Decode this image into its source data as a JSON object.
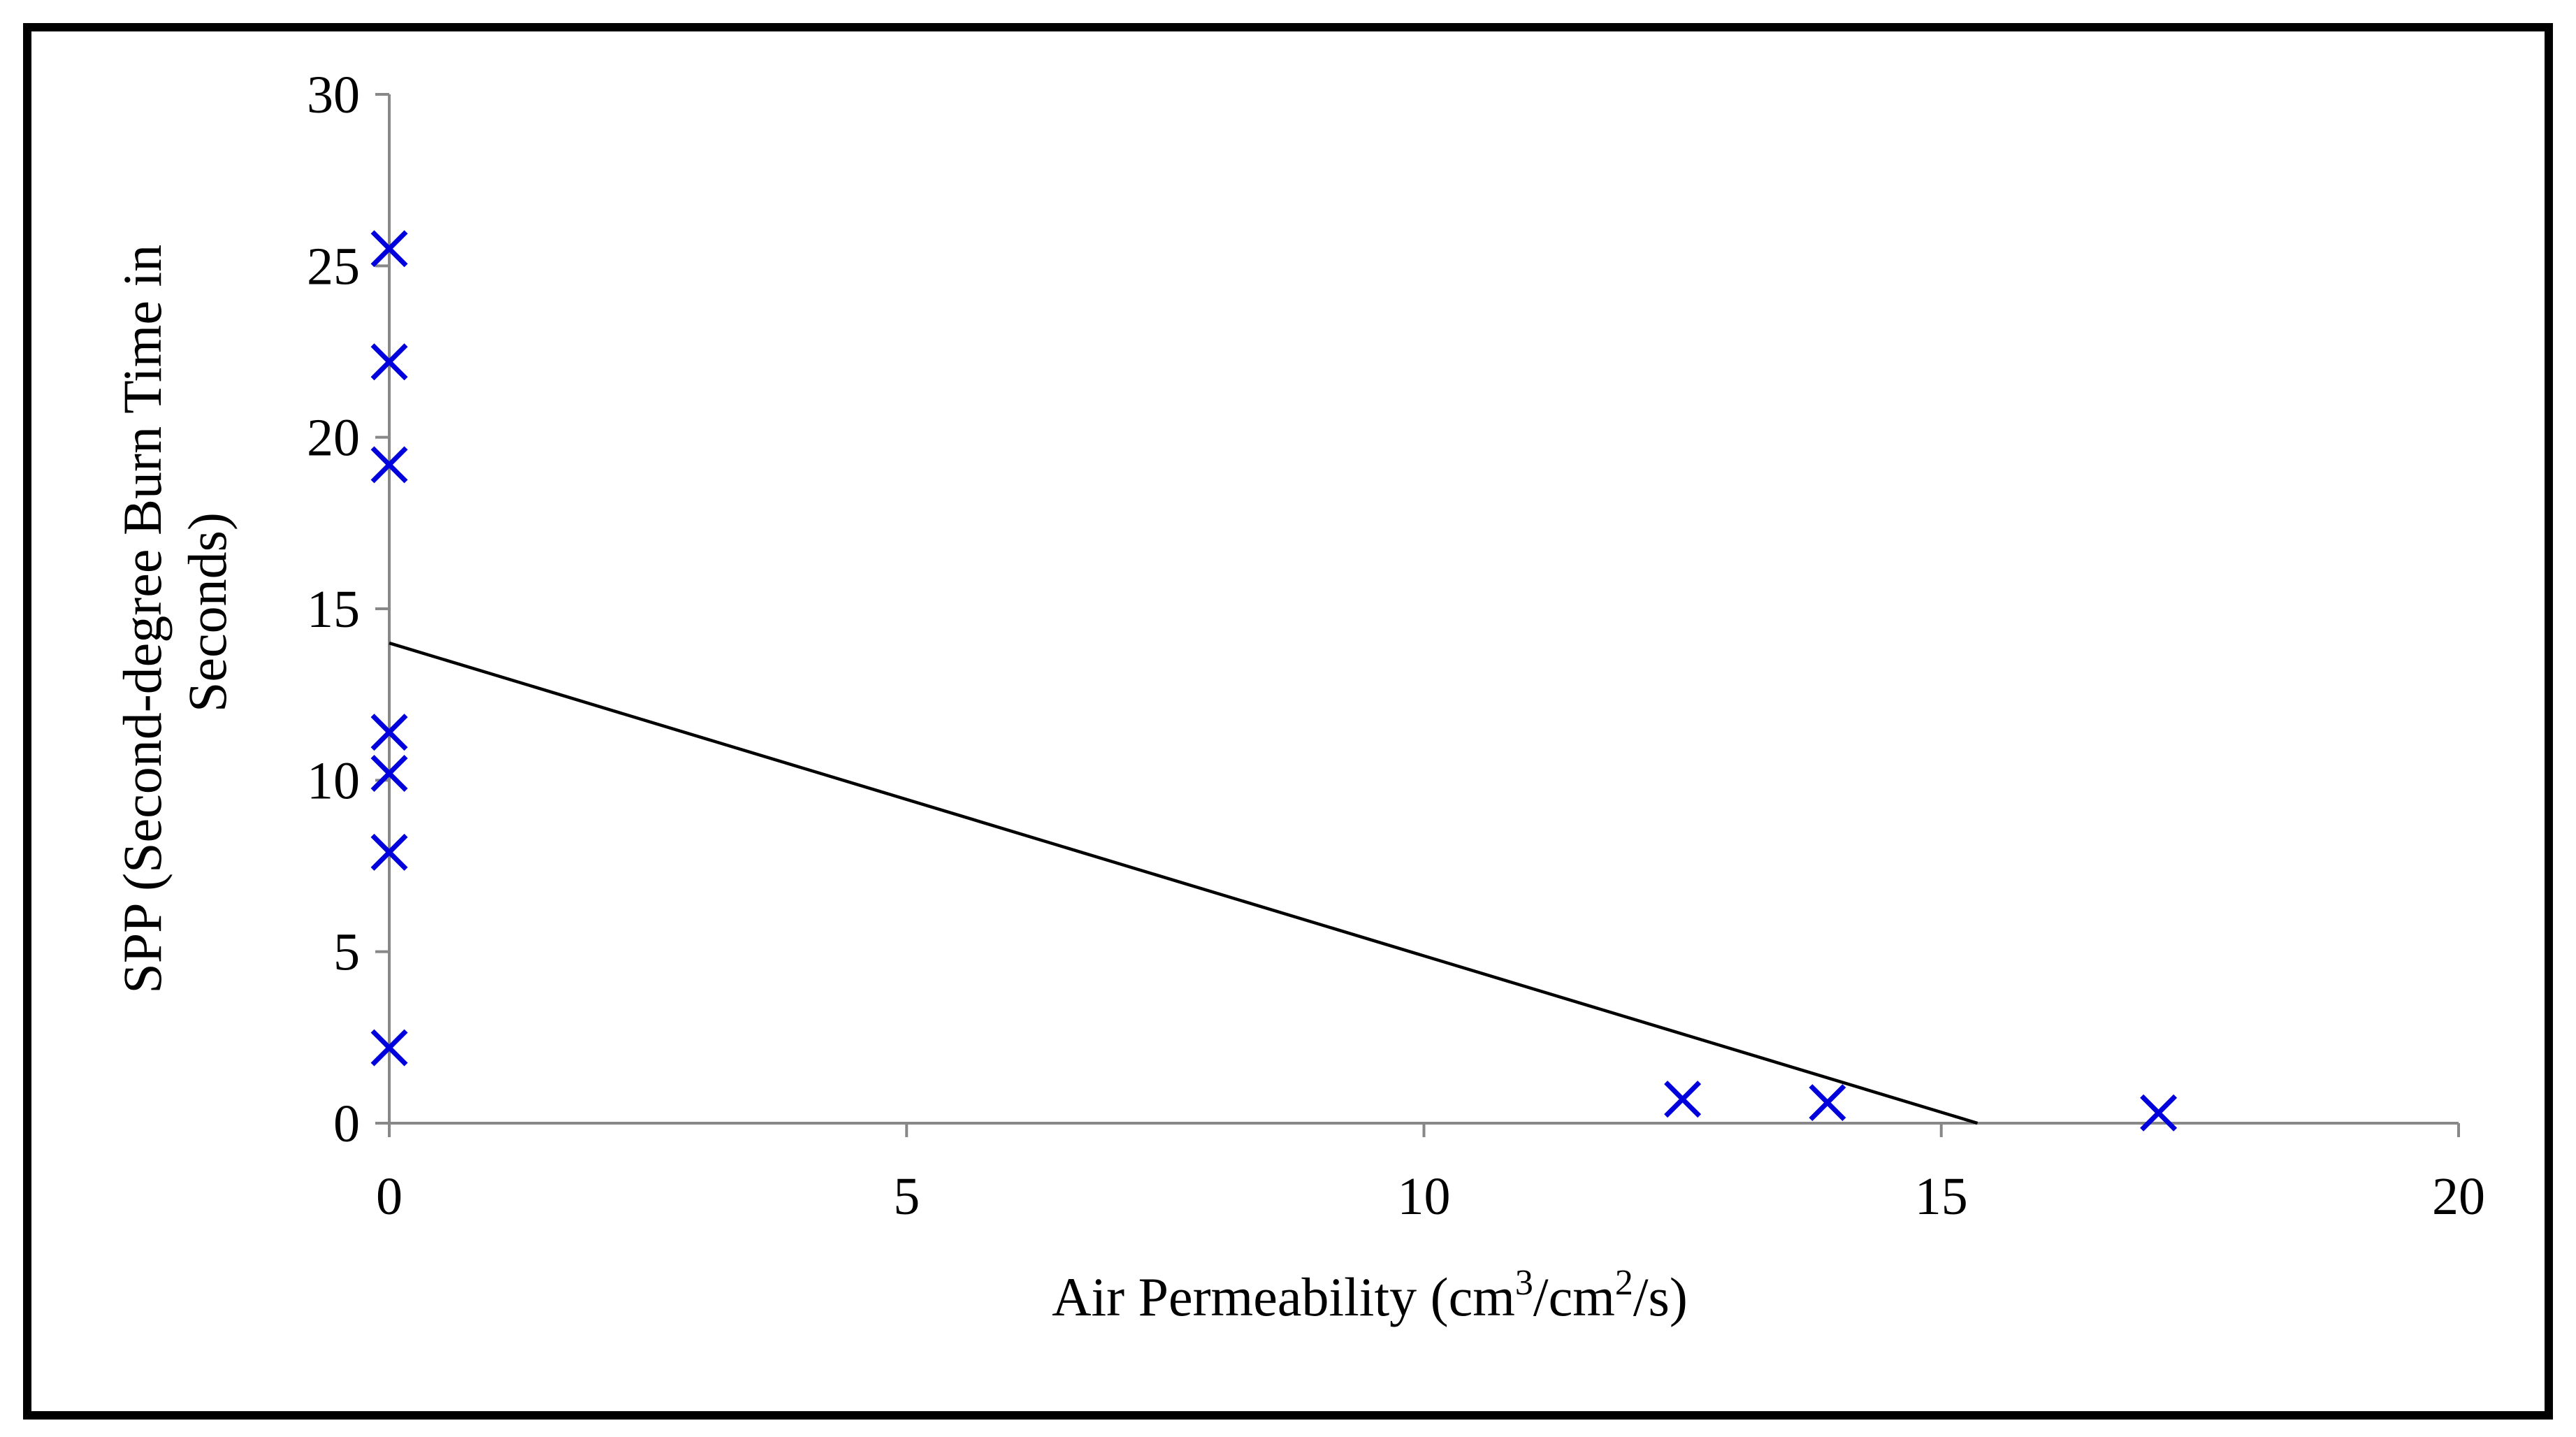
{
  "chart_data": {
    "type": "scatter",
    "title": "",
    "xlabel": {
      "prefix": "Air Permeability (cm",
      "sup1": "3",
      "mid": "/cm",
      "sup2": "2",
      "suffix": "/s)"
    },
    "ylabel": {
      "line1": "SPP (Second-degree Burn Time in",
      "line2": "Seconds)"
    },
    "xlim": [
      0,
      20
    ],
    "ylim": [
      0,
      30
    ],
    "x_ticks": [
      0,
      5,
      10,
      15,
      20
    ],
    "y_ticks": [
      0,
      5,
      10,
      15,
      20,
      25,
      30
    ],
    "grid": false,
    "legend": "none",
    "series": [
      {
        "marker": "x",
        "color": "#0000dd",
        "points": [
          {
            "x": 0,
            "y": 25.5
          },
          {
            "x": 0,
            "y": 22.2
          },
          {
            "x": 0,
            "y": 19.2
          },
          {
            "x": 0,
            "y": 11.4
          },
          {
            "x": 0,
            "y": 10.2
          },
          {
            "x": 0,
            "y": 7.9
          },
          {
            "x": 0,
            "y": 2.2
          },
          {
            "x": 12.5,
            "y": 0.7
          },
          {
            "x": 13.9,
            "y": 0.6
          },
          {
            "x": 17.1,
            "y": 0.3
          }
        ]
      }
    ],
    "trendline": {
      "type": "linear",
      "color": "#000000",
      "start": {
        "x": 0,
        "y": 14.0
      },
      "end": {
        "x": 15.35,
        "y": 0
      }
    },
    "colors": {
      "marker": "#0000dd",
      "axis": "#888888",
      "trendline": "#000000",
      "frame": "#000000"
    }
  }
}
